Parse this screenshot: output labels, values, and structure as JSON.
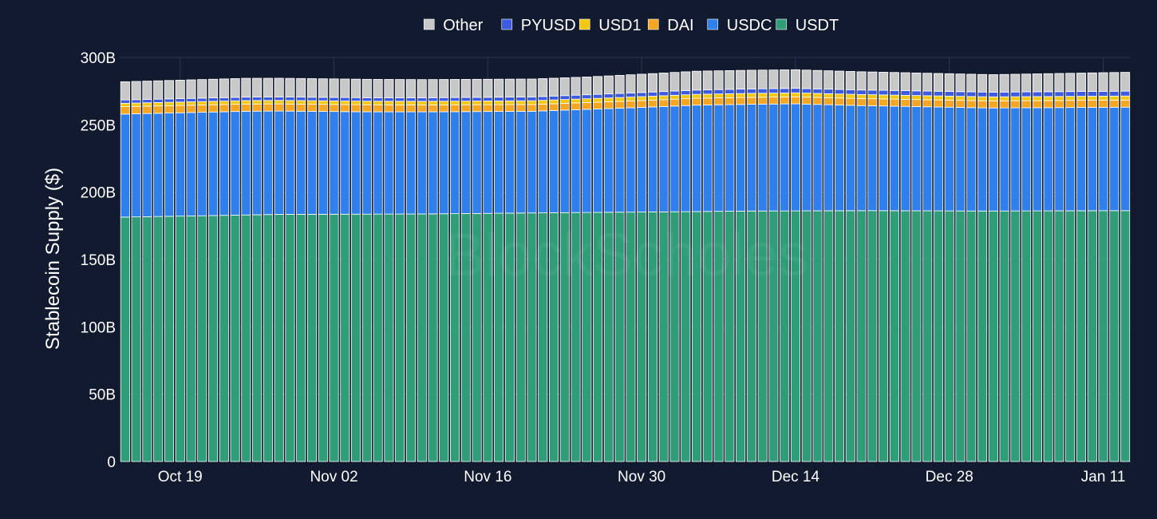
{
  "watermark": "BlockScholes",
  "chart_data": {
    "type": "bar",
    "stacked": true,
    "title": "",
    "xlabel": "",
    "ylabel": "Stablecoin Supply ($)",
    "ylim": [
      0,
      300
    ],
    "y_unit": "B",
    "y_ticks": [
      0,
      50,
      100,
      150,
      200,
      250,
      300
    ],
    "y_tick_labels": [
      "0",
      "50B",
      "100B",
      "150B",
      "200B",
      "250B",
      "300B"
    ],
    "x_start": "2025-10-14",
    "x_end": "2026-01-13",
    "x_tick_dates": [
      "2025-10-19",
      "2025-11-02",
      "2025-11-16",
      "2025-11-30",
      "2025-12-14",
      "2025-12-28",
      "2026-01-11"
    ],
    "x_tick_labels": [
      "Oct 19",
      "Nov 02",
      "Nov 16",
      "Nov 30",
      "Dec 14",
      "Dec 28",
      "Jan 11"
    ],
    "grid": true,
    "legend_position": "top-center",
    "legend_order": [
      "Other",
      "PYUSD",
      "USD1",
      "DAI",
      "USDC",
      "USDT"
    ],
    "colors": {
      "USDT": "#2e9d78",
      "USDC": "#2f80ed",
      "DAI": "#f5a623",
      "USD1": "#f2c811",
      "PYUSD": "#3d5be0",
      "Other": "#c8c8c8"
    },
    "series_keyframes": {
      "USDT": [
        [
          "2025-10-14",
          181.5
        ],
        [
          "2025-10-21",
          182.5
        ],
        [
          "2025-10-28",
          183.5
        ],
        [
          "2025-11-10",
          183.8
        ],
        [
          "2025-11-23",
          184.8
        ],
        [
          "2025-12-01",
          185.3
        ],
        [
          "2025-12-10",
          186.0
        ],
        [
          "2025-12-21",
          186.3
        ],
        [
          "2025-12-31",
          186.0
        ],
        [
          "2026-01-13",
          186.3
        ]
      ],
      "USDC": [
        [
          "2025-10-14",
          76.5
        ],
        [
          "2025-10-25",
          77.0
        ],
        [
          "2025-11-05",
          76.0
        ],
        [
          "2025-11-20",
          75.5
        ],
        [
          "2025-11-27",
          77.0
        ],
        [
          "2025-12-05",
          79.0
        ],
        [
          "2025-12-14",
          79.5
        ],
        [
          "2025-12-20",
          78.0
        ],
        [
          "2026-01-01",
          76.5
        ],
        [
          "2026-01-13",
          76.8
        ]
      ],
      "DAI": [
        [
          "2025-10-14",
          5.5
        ],
        [
          "2025-11-20",
          5.0
        ],
        [
          "2025-12-20",
          5.2
        ],
        [
          "2026-01-13",
          5.3
        ]
      ],
      "USD1": [
        [
          "2025-10-14",
          2.5
        ],
        [
          "2025-11-20",
          2.8
        ],
        [
          "2025-12-14",
          3.0
        ],
        [
          "2026-01-13",
          3.0
        ]
      ],
      "PYUSD": [
        [
          "2025-10-14",
          2.5
        ],
        [
          "2025-11-10",
          2.6
        ],
        [
          "2025-12-10",
          3.3
        ],
        [
          "2026-01-13",
          3.6
        ]
      ],
      "Other": [
        [
          "2025-10-14",
          13.5
        ],
        [
          "2025-10-25",
          14.0
        ],
        [
          "2025-11-10",
          13.5
        ],
        [
          "2025-11-25",
          13.2
        ],
        [
          "2025-12-05",
          14.0
        ],
        [
          "2025-12-14",
          13.8
        ],
        [
          "2026-01-01",
          13.0
        ],
        [
          "2026-01-13",
          14.0
        ]
      ]
    }
  }
}
